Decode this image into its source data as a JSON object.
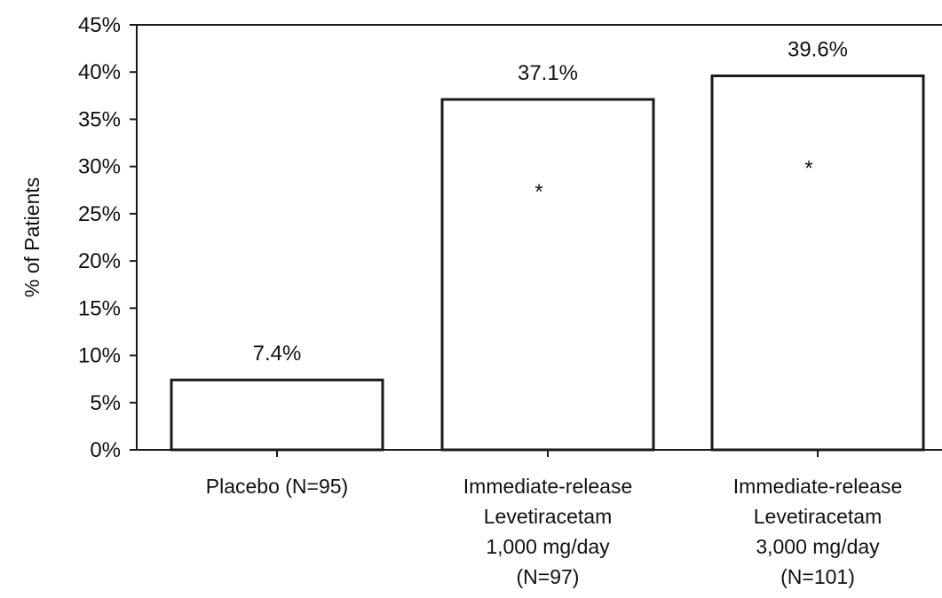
{
  "chart_data": {
    "type": "bar",
    "title": "",
    "xlabel": "",
    "ylabel": "% of Patients",
    "ylim": [
      0,
      45
    ],
    "yticks": [
      0,
      5,
      10,
      15,
      20,
      25,
      30,
      35,
      40,
      45
    ],
    "ytick_labels": [
      "0%",
      "5%",
      "10%",
      "15%",
      "20%",
      "25%",
      "30%",
      "35%",
      "40%",
      "45%"
    ],
    "categories": [
      [
        "Placebo (N=95)"
      ],
      [
        "Immediate-release",
        "Levetiracetam",
        "1,000 mg/day",
        "(N=97)"
      ],
      [
        "Immediate-release",
        "Levetiracetam",
        "3,000 mg/day",
        "(N=101)"
      ]
    ],
    "values": [
      7.4,
      37.1,
      39.6
    ],
    "data_labels": [
      "7.4%",
      "37.1%",
      "39.6%"
    ],
    "annotations": [
      "",
      "*",
      "*"
    ],
    "grid": false,
    "legend": "none",
    "colors": {
      "bar_fill": "#ffffff",
      "bar_stroke": "#1a1a1a",
      "axis": "#1a1a1a"
    }
  }
}
